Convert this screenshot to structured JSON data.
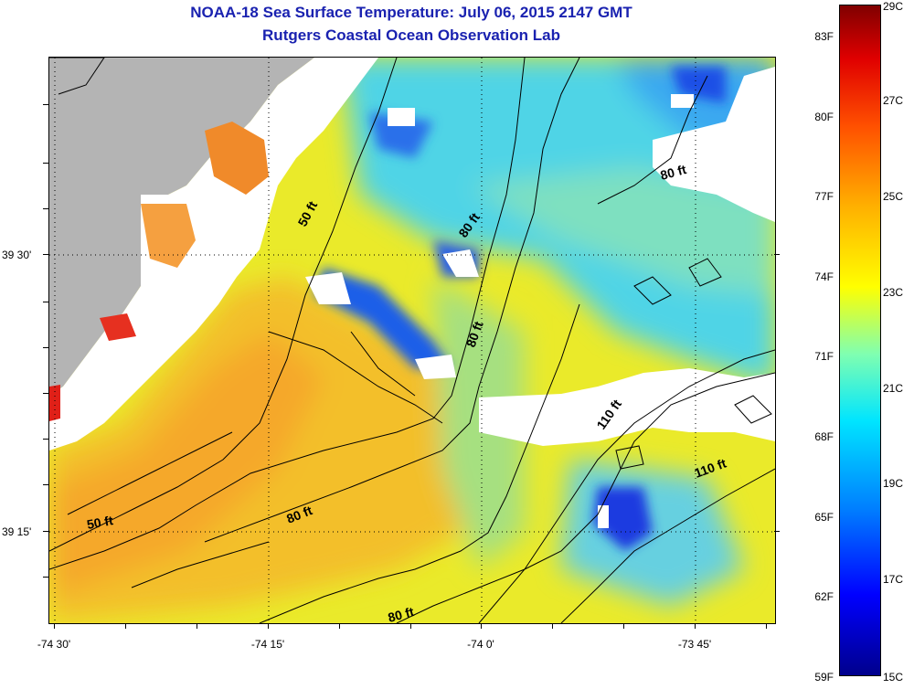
{
  "title": {
    "line1": "NOAA-18 Sea Surface Temperature:  July 06, 2015 2147 GMT",
    "line2": "Rutgers Coastal Ocean Observation Lab"
  },
  "map": {
    "lat_labels": [
      "39 30'",
      "39 15'"
    ],
    "lon_labels": [
      "-74 30'",
      "-74 15'",
      "-74 0'",
      "-73 45'"
    ],
    "contour_labels": [
      "50 ft",
      "80 ft",
      "80 ft",
      "80 ft",
      "80 ft",
      "80 ft",
      "110 ft",
      "110 ft",
      "50 ft"
    ],
    "colors": {
      "land": "#b4b4b4",
      "cloud": "#ffffff",
      "warm": "#f5b82e",
      "mid": "#f0e826",
      "cool": "#3ad0ee",
      "cold": "#1530e0"
    }
  },
  "colorbar": {
    "fahrenheit": [
      "83F",
      "80F",
      "77F",
      "74F",
      "71F",
      "68F",
      "65F",
      "62F",
      "59F"
    ],
    "celsius": [
      "29C",
      "27C",
      "25C",
      "23C",
      "21C",
      "19C",
      "17C",
      "15C"
    ]
  }
}
